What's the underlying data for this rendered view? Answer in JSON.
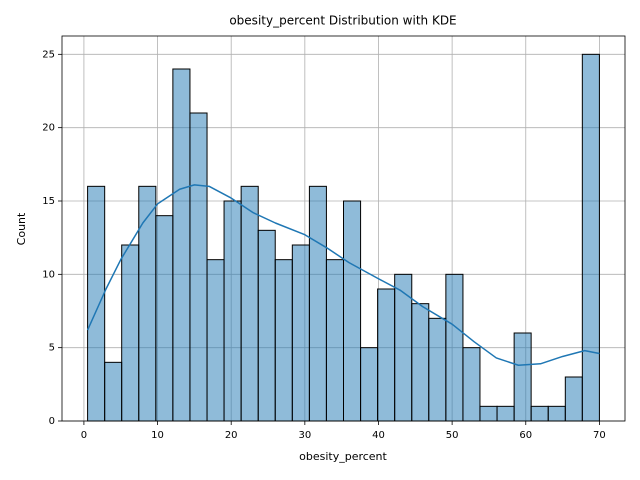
{
  "chart_data": {
    "type": "histogram",
    "title": "obesity_percent Distribution with KDE",
    "xlabel": "obesity_percent",
    "ylabel": "Count",
    "bins": [
      0.5,
      2.82,
      5.13,
      7.45,
      9.77,
      12.08,
      14.4,
      16.72,
      19.03,
      21.35,
      23.67,
      25.98,
      28.3,
      30.62,
      32.93,
      35.25,
      37.57,
      39.88,
      42.2,
      44.52,
      46.83,
      49.15,
      51.47,
      53.78,
      56.1,
      58.42,
      60.73,
      63.05,
      65.37,
      67.68,
      70
    ],
    "counts": [
      16,
      4,
      12,
      16,
      14,
      24,
      21,
      11,
      15,
      16,
      13,
      11,
      12,
      16,
      11,
      15,
      5,
      9,
      10,
      8,
      7,
      10,
      5,
      1,
      1,
      6,
      1,
      1,
      3,
      25
    ],
    "color": "#1f77b4",
    "alpha": 0.5,
    "edgecolor": "#000000",
    "kde": {
      "color": "#1f77b4",
      "x": [
        0.5,
        3,
        5,
        8,
        10,
        13,
        15,
        17,
        20,
        23,
        26,
        30,
        33,
        36,
        40,
        43,
        46,
        50,
        53,
        56,
        59,
        62,
        65,
        68,
        70
      ],
      "y": [
        6.2,
        9,
        11,
        13.5,
        14.8,
        15.8,
        16.1,
        16,
        15.2,
        14.2,
        13.5,
        12.7,
        11.8,
        10.8,
        9.7,
        8.9,
        7.8,
        6.6,
        5.4,
        4.3,
        3.8,
        3.9,
        4.4,
        4.8,
        4.6
      ]
    },
    "xlim": [
      -2.975,
      73.475
    ],
    "ylim": [
      0,
      26.25
    ],
    "xticks": [
      0,
      10,
      20,
      30,
      40,
      50,
      60,
      70
    ],
    "yticks": [
      0,
      5,
      10,
      15,
      20,
      25
    ],
    "grid": true
  }
}
